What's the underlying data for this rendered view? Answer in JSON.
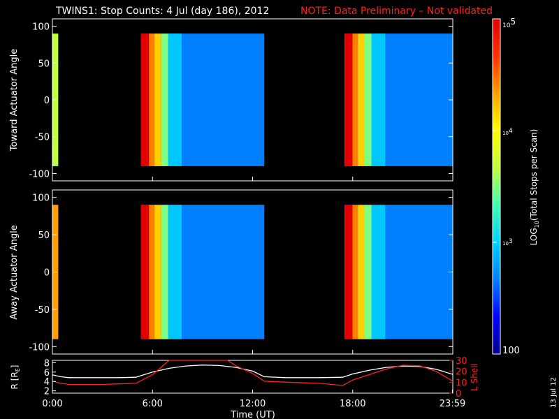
{
  "title": {
    "main": "TWINS1: Stop Counts:  4 Jul (day 186), 2012",
    "note": "NOTE: Data Preliminary – Not validated"
  },
  "footer": {
    "side_date": "13 Jul 12"
  },
  "chart_data": [
    {
      "type": "heatmap",
      "ylabel": "Toward Actuator Angle",
      "x_units": "hours UT",
      "xlim": [
        0,
        24
      ],
      "ylim": [
        -110,
        110
      ],
      "yticks": [
        100,
        50,
        0,
        -50,
        -100
      ],
      "data_blocks": [
        {
          "start": 0.0,
          "end": 0.35,
          "level": 3.7
        },
        {
          "start": 5.3,
          "end": 12.7,
          "level": 2.6
        },
        {
          "start": 17.5,
          "end": 24.0,
          "level": 2.55
        }
      ]
    },
    {
      "type": "heatmap",
      "ylabel": "Away Actuator Angle",
      "x_units": "hours UT",
      "xlim": [
        0,
        24
      ],
      "ylim": [
        -110,
        110
      ],
      "yticks": [
        100,
        50,
        0,
        -50,
        -100
      ],
      "data_blocks": [
        {
          "start": 0.0,
          "end": 0.35,
          "level": 4.2
        },
        {
          "start": 5.3,
          "end": 12.7,
          "level": 2.6
        },
        {
          "start": 17.5,
          "end": 24.0,
          "level": 2.5
        }
      ]
    },
    {
      "type": "line",
      "xlabel": "Time (UT)",
      "ylabel_left": "R [R",
      "ylabel_left_sub": "E",
      "ylabel_left_close": "]",
      "ylabel_right": "L Shell",
      "xlim": [
        0,
        24
      ],
      "ylim_left": [
        1.5,
        8.5
      ],
      "ylim_right": [
        0,
        30
      ],
      "yticks_left": [
        "8",
        "6",
        "4",
        "2"
      ],
      "yticks_right": [
        "30",
        "20",
        "10",
        "0"
      ],
      "xtick_labels": [
        "0:00",
        "6:00",
        "12:00",
        "18:00",
        "23:59"
      ],
      "xtick_values": [
        0,
        6,
        12,
        18,
        23.98
      ],
      "series": [
        {
          "axis": "left",
          "color": "#ffffff",
          "x": [
            0,
            0.5,
            1,
            2,
            3,
            4,
            5,
            6,
            7,
            8,
            9,
            10,
            11,
            12,
            12.7,
            14,
            16,
            17.4,
            18,
            19,
            20,
            21,
            22,
            23,
            24
          ],
          "y": [
            5.4,
            5.0,
            4.8,
            4.8,
            4.8,
            4.8,
            4.9,
            6.0,
            6.8,
            7.3,
            7.5,
            7.4,
            7.0,
            6.2,
            5.0,
            4.8,
            4.8,
            4.9,
            5.6,
            6.4,
            7.0,
            7.3,
            7.2,
            6.6,
            5.5
          ]
        },
        {
          "axis": "right",
          "color": "#ff2020",
          "x": [
            0,
            0.5,
            1,
            2,
            3,
            4,
            5,
            6,
            7,
            8,
            10.5,
            11,
            12,
            12.7,
            14,
            16,
            17.4,
            18,
            19,
            20,
            21,
            22,
            23,
            24
          ],
          "y": [
            11,
            9,
            8,
            8,
            8,
            8.5,
            9,
            17,
            30,
            30,
            30,
            25,
            18,
            11,
            10,
            9,
            7,
            12,
            17,
            22,
            25.5,
            25,
            20,
            11
          ]
        }
      ]
    }
  ],
  "colorbar": {
    "label_main": "LOG",
    "label_sub": "10",
    "label_rest": "(Total Stops per Scan)",
    "tick_labels": [
      "10",
      "5",
      "10",
      "4",
      "10",
      "3",
      "100"
    ],
    "levels": [
      5,
      4,
      3,
      2
    ],
    "range": [
      2,
      5
    ],
    "colors": [
      "#00008c",
      "#0000ff",
      "#0080ff",
      "#00d0ff",
      "#40ffb0",
      "#c0ff40",
      "#ffff00",
      "#ffa000",
      "#ff3000",
      "#e00000"
    ]
  }
}
